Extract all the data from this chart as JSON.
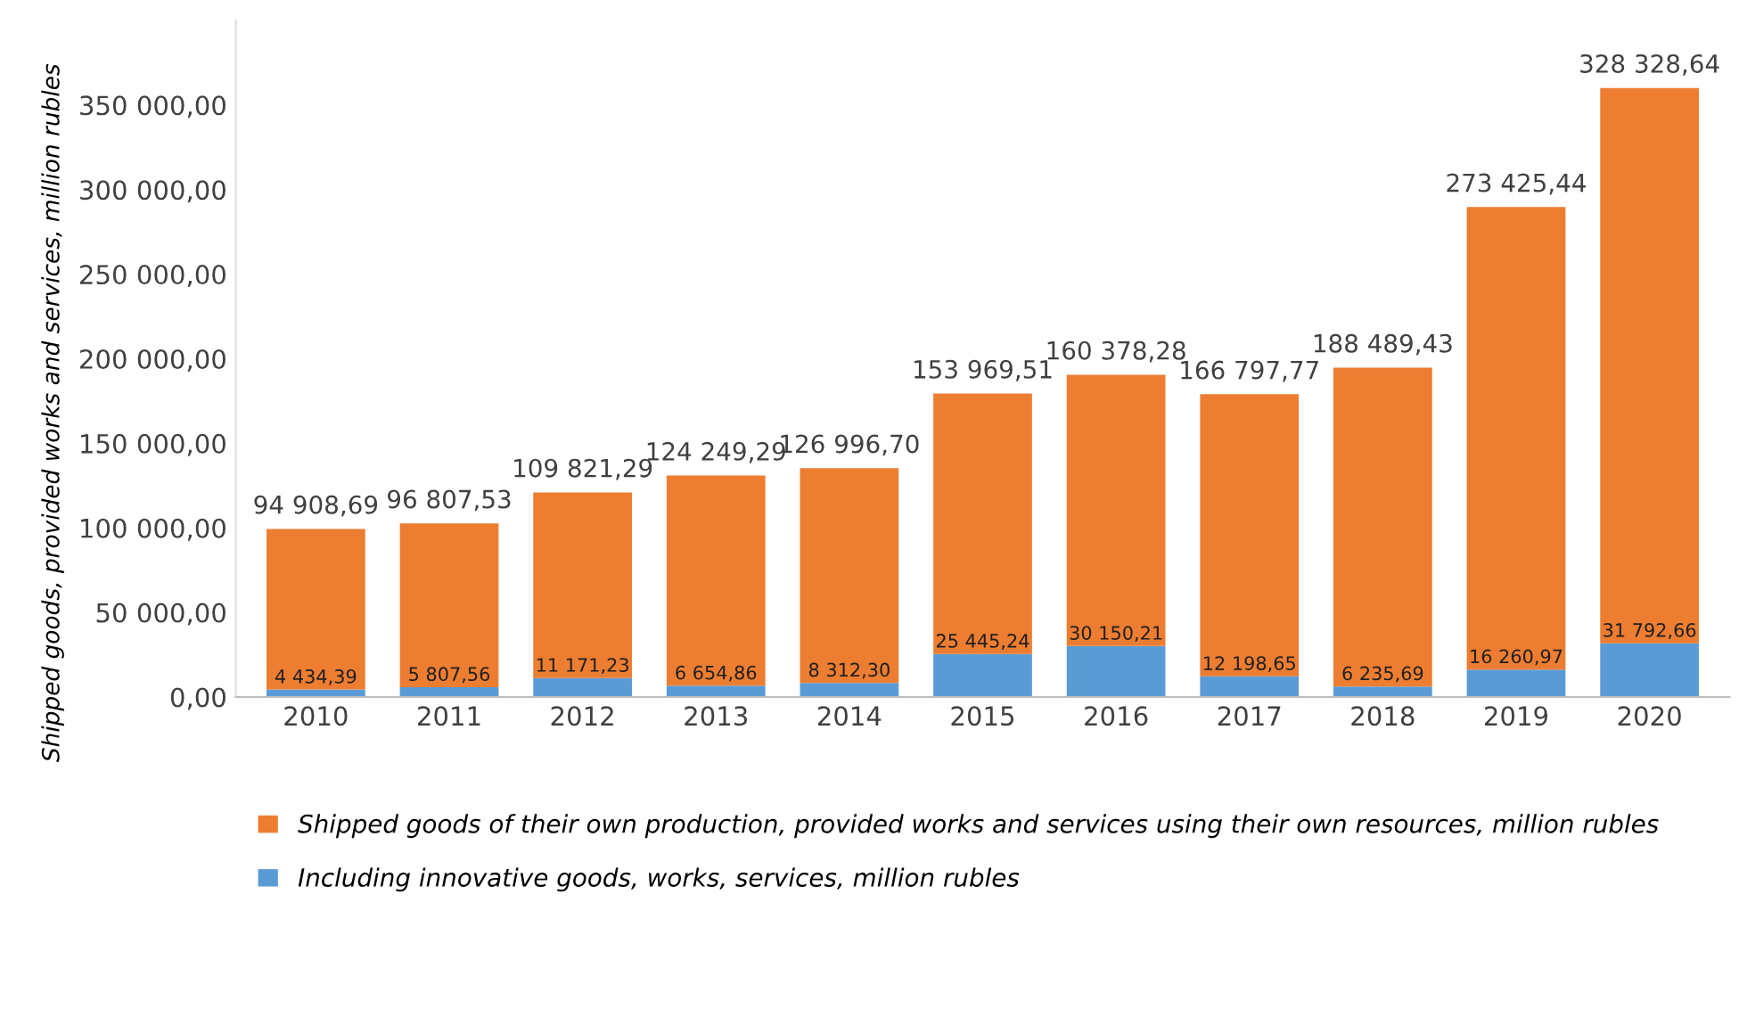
{
  "chart_data": {
    "type": "bar",
    "stacked": true,
    "ylabel": "Shipped goods, provided works and services, million rubles",
    "categories": [
      "2010",
      "2011",
      "2012",
      "2013",
      "2014",
      "2015",
      "2016",
      "2017",
      "2018",
      "2019",
      "2020"
    ],
    "series": [
      {
        "name": "Including innovative goods, works, services, million rubles",
        "color": "#5b9bd5",
        "values": [
          4434.39,
          5807.56,
          11171.23,
          6654.86,
          8312.3,
          25445.24,
          30150.21,
          12198.65,
          6235.69,
          16260.97,
          31792.66
        ],
        "value_labels": [
          "4 434,39",
          "5 807,56",
          "11 171,23",
          "6 654,86",
          "8 312,30",
          "25 445,24",
          "30 150,21",
          "12 198,65",
          "6 235,69",
          "16 260,97",
          "31 792,66"
        ]
      },
      {
        "name": "Shipped goods of their own production, provided works and services using their own resources, million rubles",
        "color": "#ed7d31",
        "values": [
          94908.69,
          96807.53,
          109821.29,
          124249.29,
          126996.7,
          153969.51,
          160378.28,
          166797.77,
          188489.43,
          273425.44,
          328328.64
        ],
        "value_labels": [
          "94 908,69",
          "96 807,53",
          "109 821,29",
          "124 249,29",
          "126 996,70",
          "153 969,51",
          "160 378,28",
          "166 797,77",
          "188 489,43",
          "273 425,44",
          "328 328,64"
        ]
      }
    ],
    "ylim": [
      0,
      400000
    ],
    "yticks": [
      {
        "value": 0,
        "label": "0,00"
      },
      {
        "value": 50000,
        "label": "50 000,00"
      },
      {
        "value": 100000,
        "label": "100 000,00"
      },
      {
        "value": 150000,
        "label": "150 000,00"
      },
      {
        "value": 200000,
        "label": "200 000,00"
      },
      {
        "value": 250000,
        "label": "250 000,00"
      },
      {
        "value": 300000,
        "label": "300 000,00"
      },
      {
        "value": 350000,
        "label": "350 000,00"
      }
    ],
    "grid": false,
    "legend": "bottom"
  }
}
